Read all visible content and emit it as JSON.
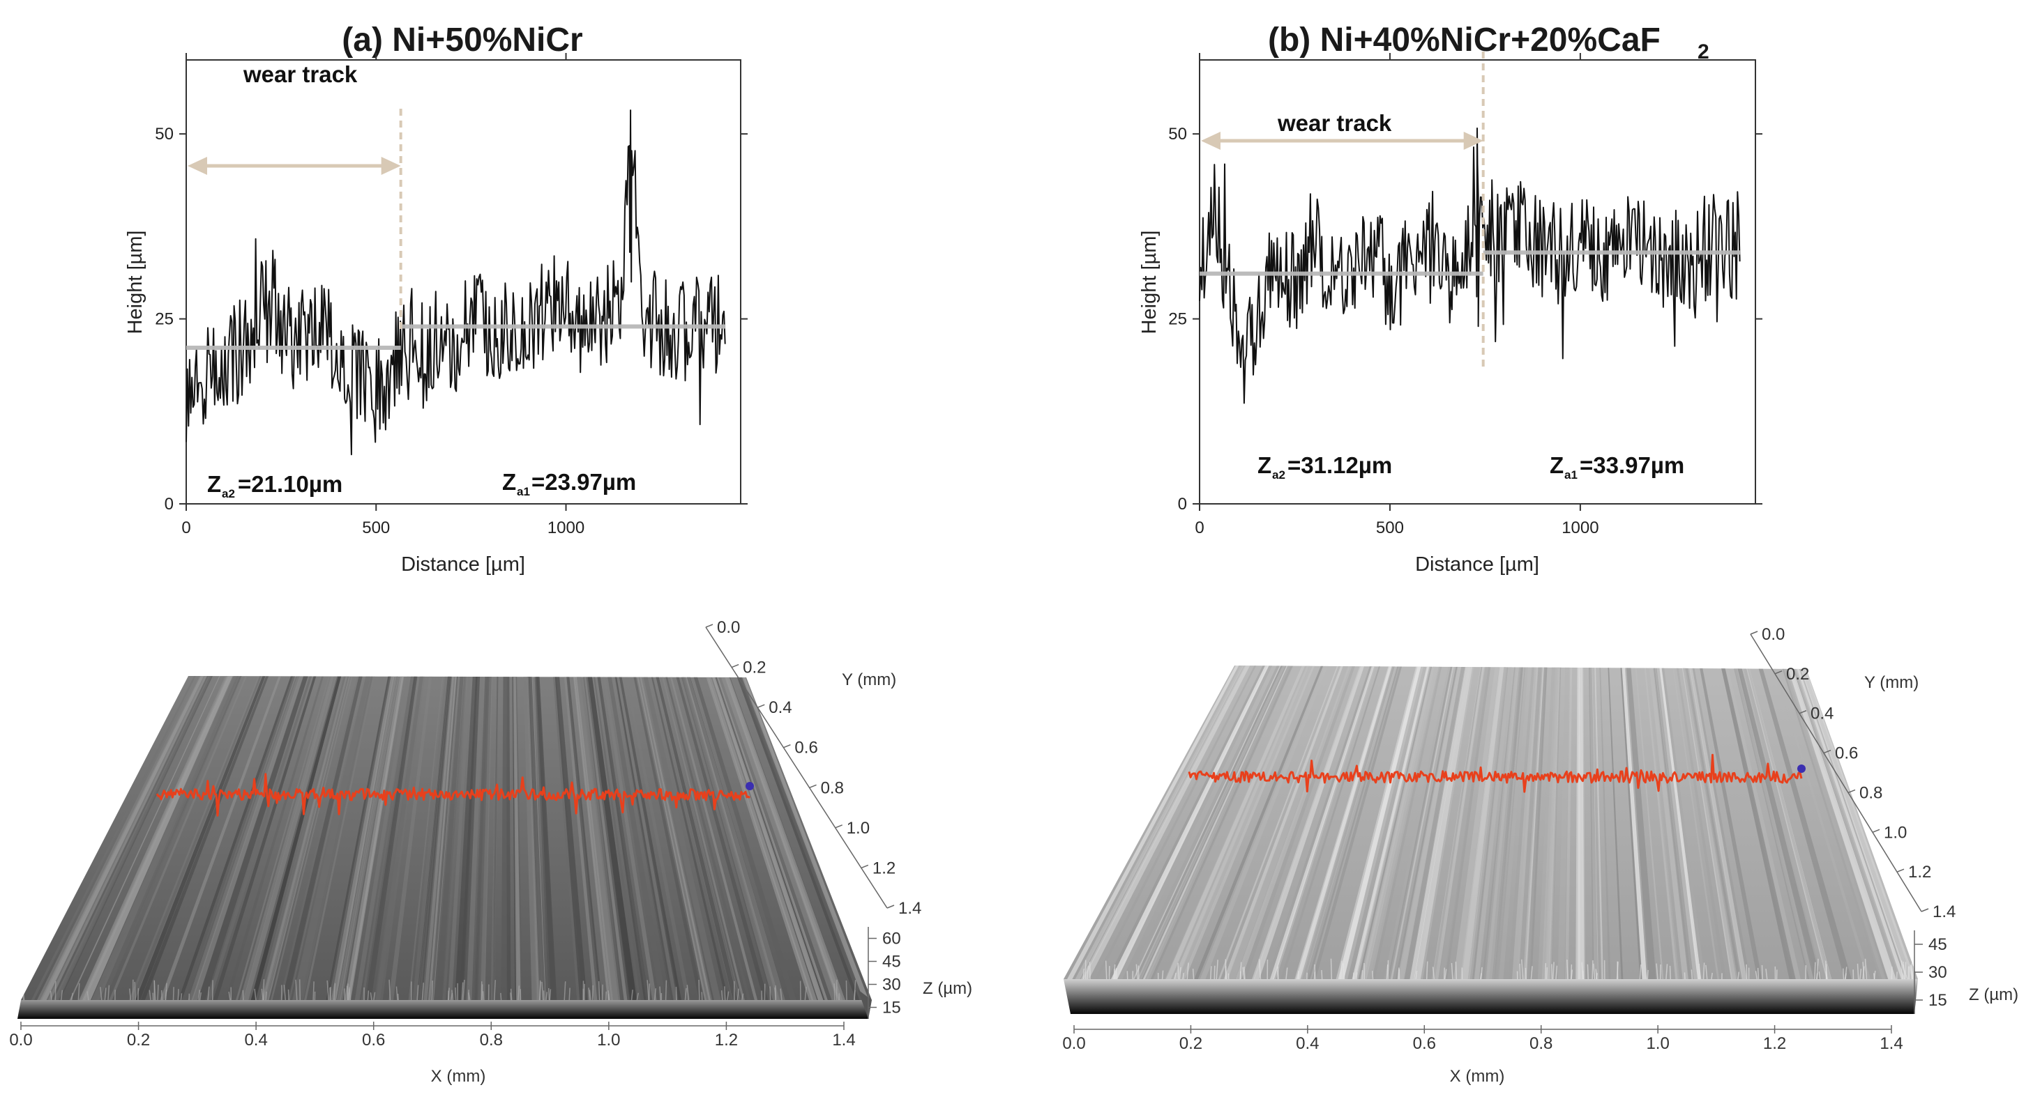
{
  "chart_data": [
    {
      "type": "line",
      "title": "(a) Ni+50%NiCr",
      "xlabel": "Distance [µm]",
      "ylabel": "Height [µm]",
      "xlim": [
        0,
        1460
      ],
      "ylim": [
        0,
        60
      ],
      "xticks": [
        "0",
        "500",
        "1000"
      ],
      "xtick_values": [
        0,
        500,
        1000
      ],
      "yticks": [
        "0",
        "25",
        "50"
      ],
      "ytick_values": [
        0,
        25,
        50
      ],
      "wear_track_label": "wear track",
      "wear_track_end": 565,
      "profile_seed": 7,
      "series": [
        {
          "name": "profile",
          "x": [
            0,
            50,
            100,
            150,
            200,
            250,
            300,
            350,
            400,
            450,
            500,
            550,
            600,
            650,
            700,
            750,
            800,
            850,
            900,
            950,
            1000,
            1050,
            1100,
            1150,
            1170,
            1200,
            1250,
            1300,
            1350,
            1400,
            1420
          ],
          "values": [
            12,
            16,
            19,
            21,
            27,
            23,
            22,
            25,
            21,
            18,
            15,
            19,
            23,
            22,
            20,
            26,
            24,
            25,
            22,
            27,
            26,
            24,
            25,
            28,
            52,
            26,
            24,
            23,
            25,
            24,
            26
          ]
        },
        {
          "name": "mean worn",
          "x": [
            0,
            565
          ],
          "values": [
            21.1,
            21.1
          ]
        },
        {
          "name": "mean unworn",
          "x": [
            565,
            1420
          ],
          "values": [
            23.97,
            23.97
          ]
        }
      ],
      "annotations": {
        "z2": {
          "prefix": "Z",
          "sub": "a2",
          "value": "=21.10µm"
        },
        "z1": {
          "prefix": "Z",
          "sub": "a1",
          "value": "=23.97µm"
        }
      },
      "colors": {
        "profile": "#111111",
        "mean": "#b8b8b8",
        "track": "#d8c9b5"
      }
    },
    {
      "type": "line",
      "title": "(b) Ni+40%NiCr+20%CaF",
      "title_sub": "2",
      "xlabel": "Distance [µm]",
      "ylabel": "Height [µm]",
      "xlim": [
        0,
        1460
      ],
      "ylim": [
        0,
        60
      ],
      "xticks": [
        "0",
        "500",
        "1000"
      ],
      "xtick_values": [
        0,
        500,
        1000
      ],
      "yticks": [
        "0",
        "25",
        "50"
      ],
      "ytick_values": [
        0,
        25,
        50
      ],
      "wear_track_label": "wear track",
      "wear_track_end": 745,
      "profile_seed": 23,
      "series": [
        {
          "name": "profile",
          "x": [
            0,
            40,
            80,
            120,
            160,
            200,
            250,
            300,
            350,
            400,
            450,
            500,
            550,
            600,
            650,
            700,
            730,
            760,
            800,
            850,
            900,
            950,
            1000,
            1050,
            1100,
            1150,
            1200,
            1250,
            1300,
            1350,
            1400,
            1420
          ],
          "values": [
            31,
            40,
            28,
            20,
            27,
            33,
            30,
            36,
            31,
            33,
            35,
            30,
            32,
            34,
            31,
            33,
            46,
            38,
            36,
            37,
            35,
            33,
            35,
            33,
            34,
            37,
            32,
            34,
            33,
            35,
            34,
            36
          ]
        },
        {
          "name": "mean worn",
          "x": [
            0,
            745
          ],
          "values": [
            31.12,
            31.12
          ]
        },
        {
          "name": "mean unworn",
          "x": [
            745,
            1420
          ],
          "values": [
            33.97,
            33.97
          ]
        }
      ],
      "annotations": {
        "z2": {
          "prefix": "Z",
          "sub": "a2",
          "value": "=31.12µm"
        },
        "z1": {
          "prefix": "Z",
          "sub": "a1",
          "value": "=33.97µm"
        }
      },
      "colors": {
        "profile": "#111111",
        "mean": "#b8b8b8",
        "track": "#d8c9b5"
      }
    }
  ],
  "surfaces": [
    {
      "x_label": "X (mm)",
      "y_label": "Y (mm)",
      "z_label": "Z (µm)",
      "x_ticks": [
        "0.0",
        "0.2",
        "0.4",
        "0.6",
        "0.8",
        "1.0",
        "1.2",
        "1.4"
      ],
      "y_ticks": [
        "0.0",
        "0.2",
        "0.4",
        "0.6",
        "0.8",
        "1.0",
        "1.2",
        "1.4"
      ],
      "z_ticks": [
        "60",
        "45",
        "30",
        "15"
      ],
      "tone": "dark",
      "stripe_seed": 11,
      "colors": {
        "profile": "#e8401c",
        "marker": "#3b2fb0"
      }
    },
    {
      "x_label": "X (mm)",
      "y_label": "Y (mm)",
      "z_label": "Z (µm)",
      "x_ticks": [
        "0.0",
        "0.2",
        "0.4",
        "0.6",
        "0.8",
        "1.0",
        "1.2",
        "1.4"
      ],
      "y_ticks": [
        "0.0",
        "0.2",
        "0.4",
        "0.6",
        "0.8",
        "1.0",
        "1.2",
        "1.4"
      ],
      "z_ticks": [
        "45",
        "30",
        "15"
      ],
      "tone": "light",
      "stripe_seed": 5,
      "colors": {
        "profile": "#e8401c",
        "marker": "#3b2fb0"
      }
    }
  ]
}
